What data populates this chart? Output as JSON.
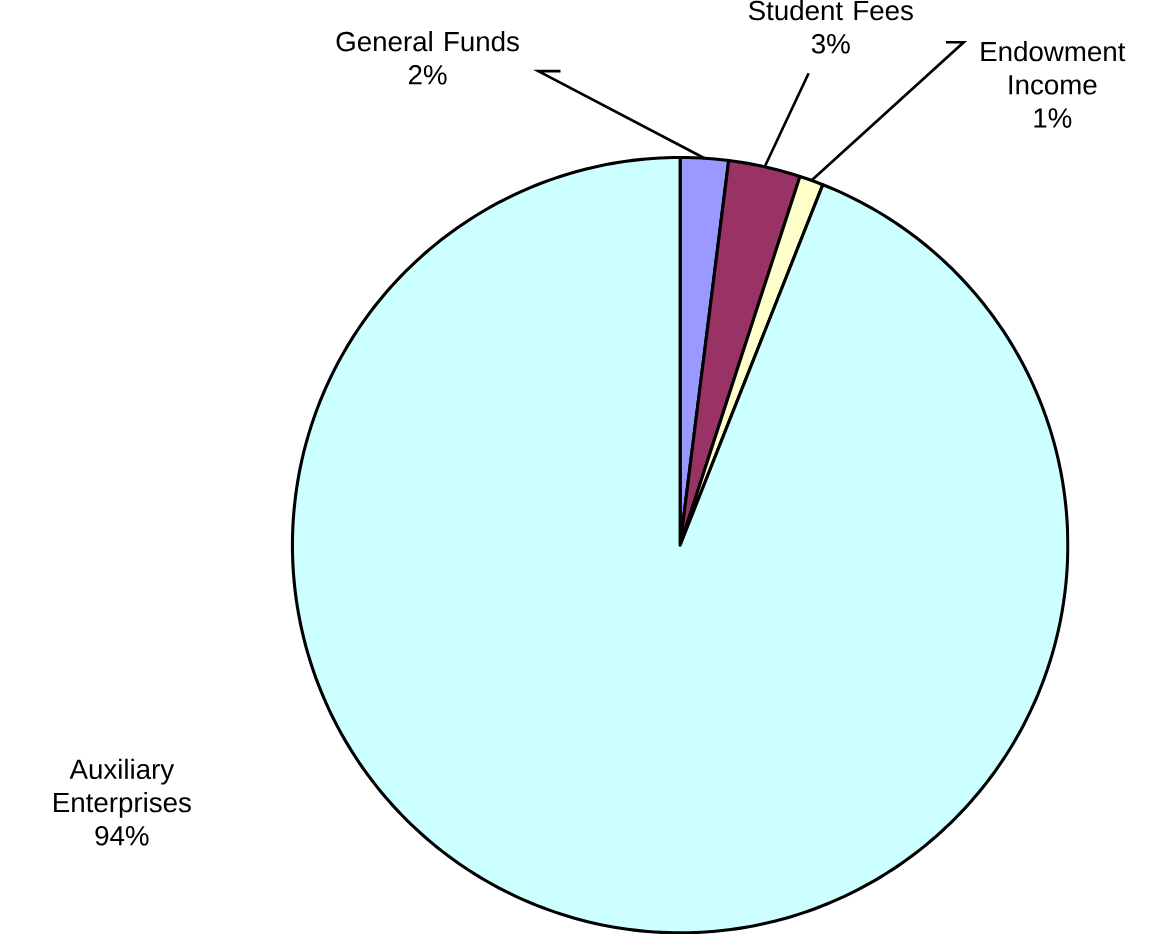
{
  "chart_data": {
    "type": "pie",
    "categories": [
      "General Funds",
      "Student Fees",
      "Endowment Income",
      "Auxiliary Enterprises"
    ],
    "values": [
      2,
      3,
      1,
      94
    ],
    "colors": [
      "#9999ff",
      "#993366",
      "#ffffcc",
      "#ccffff"
    ],
    "value_labels": [
      "2%",
      "3%",
      "1%",
      "94%"
    ]
  }
}
